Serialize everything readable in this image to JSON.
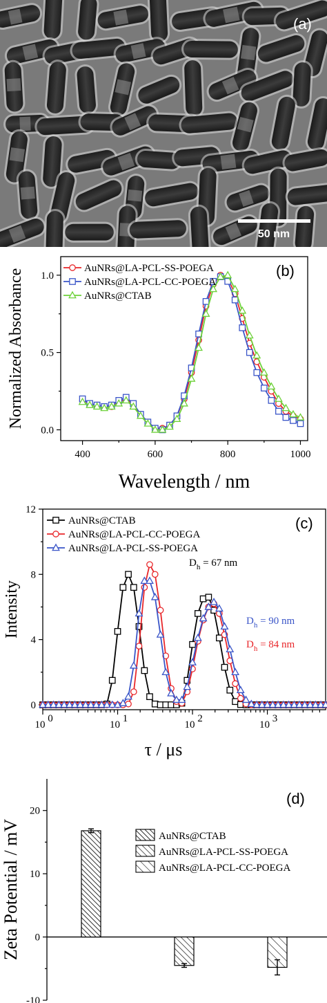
{
  "panel_a": {
    "label": "(a)",
    "scale_bar_label": "50 nm"
  },
  "chart_data": [
    {
      "panel": "(b)",
      "type": "line",
      "xlabel": "Wavelength / nm",
      "ylabel": "Normalized Absorbance",
      "xlim": [
        340,
        1020
      ],
      "ylim": [
        -0.07,
        1.12
      ],
      "xticks": [
        400,
        600,
        800,
        1000
      ],
      "yticks": [
        0.0,
        0.5,
        1.0
      ],
      "ytick_labels": [
        "0.0",
        "0.5",
        "1.0"
      ],
      "legend_position": "top-left",
      "series": [
        {
          "name": "AuNRs@LA-PCL-SS-POEGA",
          "color": "#e8262a",
          "marker": "circle",
          "x": [
            400,
            420,
            440,
            460,
            480,
            500,
            520,
            540,
            560,
            580,
            600,
            620,
            640,
            660,
            680,
            700,
            720,
            740,
            760,
            780,
            800,
            820,
            840,
            860,
            880,
            900,
            920,
            940,
            960,
            980,
            1000
          ],
          "y": [
            0.19,
            0.17,
            0.16,
            0.15,
            0.15,
            0.18,
            0.2,
            0.16,
            0.1,
            0.05,
            0.01,
            0.01,
            0.03,
            0.09,
            0.2,
            0.37,
            0.58,
            0.8,
            0.94,
            1.0,
            0.98,
            0.88,
            0.72,
            0.56,
            0.44,
            0.34,
            0.25,
            0.17,
            0.12,
            0.09,
            0.07
          ]
        },
        {
          "name": "AuNRs@LA-PCL-CC-POEGA",
          "color": "#3a55c8",
          "marker": "square",
          "x": [
            400,
            420,
            440,
            460,
            480,
            500,
            520,
            540,
            560,
            580,
            600,
            620,
            640,
            660,
            680,
            700,
            720,
            740,
            760,
            780,
            800,
            820,
            840,
            860,
            880,
            900,
            920,
            940,
            960,
            980,
            1000
          ],
          "y": [
            0.2,
            0.17,
            0.16,
            0.15,
            0.16,
            0.19,
            0.21,
            0.17,
            0.1,
            0.05,
            0.01,
            0.0,
            0.03,
            0.09,
            0.22,
            0.4,
            0.62,
            0.83,
            0.96,
            0.99,
            0.96,
            0.84,
            0.66,
            0.5,
            0.37,
            0.27,
            0.19,
            0.12,
            0.08,
            0.06,
            0.04
          ]
        },
        {
          "name": "AuNRs@CTAB",
          "color": "#6ed13a",
          "marker": "triangle",
          "x": [
            400,
            420,
            440,
            460,
            480,
            500,
            520,
            540,
            560,
            580,
            600,
            620,
            640,
            660,
            680,
            700,
            720,
            740,
            760,
            780,
            800,
            820,
            840,
            860,
            880,
            900,
            920,
            940,
            960,
            980,
            1000
          ],
          "y": [
            0.18,
            0.16,
            0.15,
            0.14,
            0.15,
            0.17,
            0.19,
            0.15,
            0.09,
            0.04,
            0.0,
            0.0,
            0.02,
            0.07,
            0.17,
            0.33,
            0.53,
            0.75,
            0.91,
            0.99,
            1.0,
            0.91,
            0.77,
            0.61,
            0.48,
            0.37,
            0.28,
            0.2,
            0.14,
            0.1,
            0.08
          ]
        }
      ]
    },
    {
      "panel": "(c)",
      "type": "line",
      "xlabel": "τ / μs",
      "ylabel": "Intensity",
      "x_scale": "log",
      "xlim": [
        1,
        6000
      ],
      "ylim": [
        -0.3,
        12
      ],
      "yticks": [
        0,
        4,
        8,
        12
      ],
      "legend_position": "top-left",
      "annotations": {
        "ctab": {
          "prefix": "D",
          "sub": "h",
          "value": "= 67 nm",
          "color": "#000000"
        },
        "ss": {
          "prefix": "D",
          "sub": "h",
          "value": "= 90 nm",
          "color": "#3a55c8"
        },
        "cc": {
          "prefix": "D",
          "sub": "h",
          "value": "= 84 nm",
          "color": "#e8262a"
        }
      },
      "series": [
        {
          "name": "AuNRs@CTAB",
          "color": "#000000",
          "marker": "square",
          "x": [
            1,
            1.18,
            1.39,
            1.64,
            1.93,
            2.28,
            2.68,
            3.16,
            3.73,
            4.39,
            5.18,
            6.11,
            7.2,
            8.48,
            10,
            11.8,
            13.9,
            16.4,
            19.3,
            22.8,
            26.8,
            31.6,
            37.3,
            43.9,
            51.8,
            61.1,
            72,
            84.8,
            100,
            118,
            139,
            164,
            193,
            228,
            268,
            316,
            373,
            439,
            518,
            611,
            720,
            848,
            1000,
            1180,
            1390,
            1640,
            1930,
            2280,
            2680,
            3160,
            3730,
            4390,
            5180,
            6000
          ],
          "y": [
            0,
            0,
            0,
            0,
            0,
            0,
            0,
            0,
            0,
            0,
            0,
            0,
            0.05,
            1.5,
            4.5,
            7.2,
            8.0,
            7.2,
            4.8,
            2.1,
            0.5,
            0.05,
            0,
            0,
            0,
            0,
            0.1,
            1.5,
            3.7,
            5.6,
            6.5,
            6.6,
            5.8,
            4.1,
            2.3,
            0.9,
            0.2,
            0.02,
            0,
            0,
            0,
            0,
            0,
            0,
            0,
            0,
            0,
            0,
            0,
            0,
            0,
            0,
            0,
            0
          ]
        },
        {
          "name": "AuNRs@LA-PCL-CC-POEGA",
          "color": "#e8262a",
          "marker": "circle",
          "x": [
            1,
            1.18,
            1.39,
            1.64,
            1.93,
            2.28,
            2.68,
            3.16,
            3.73,
            4.39,
            5.18,
            6.11,
            7.2,
            8.48,
            10,
            11.8,
            13.9,
            16.4,
            19.3,
            22.8,
            26.8,
            31.6,
            37.3,
            43.9,
            51.8,
            61.1,
            72,
            84.8,
            100,
            118,
            139,
            164,
            193,
            228,
            268,
            316,
            373,
            439,
            518,
            611,
            720,
            848,
            1000,
            1180,
            1390,
            1640,
            1930,
            2280,
            2680,
            3160,
            3730,
            4390,
            5180,
            6000
          ],
          "y": [
            0,
            0,
            0,
            0,
            0,
            0,
            0,
            0,
            0,
            0,
            0,
            0,
            0,
            0,
            0,
            0,
            0.05,
            0.8,
            3.6,
            7.2,
            8.6,
            8.0,
            5.8,
            3.0,
            1.0,
            0.2,
            0.1,
            0.8,
            2.2,
            3.9,
            5.2,
            6.0,
            6.2,
            5.6,
            4.3,
            2.7,
            1.3,
            0.4,
            0.05,
            0,
            0,
            0,
            0,
            0,
            0,
            0,
            0,
            0,
            0,
            0,
            0,
            0,
            0,
            0
          ]
        },
        {
          "name": "AuNRs@LA-PCL-SS-POEGA",
          "color": "#3a55c8",
          "marker": "triangle",
          "x": [
            1,
            1.18,
            1.39,
            1.64,
            1.93,
            2.28,
            2.68,
            3.16,
            3.73,
            4.39,
            5.18,
            6.11,
            7.2,
            8.48,
            10,
            11.8,
            13.9,
            16.4,
            19.3,
            22.8,
            26.8,
            31.6,
            37.3,
            43.9,
            51.8,
            61.1,
            72,
            84.8,
            100,
            118,
            139,
            164,
            193,
            228,
            268,
            316,
            373,
            439,
            518,
            611,
            720,
            848,
            1000,
            1180,
            1390,
            1640,
            1930,
            2280,
            2680,
            3160,
            3730,
            4390,
            5180,
            6000
          ],
          "y": [
            0,
            0,
            0,
            0,
            0,
            0,
            0,
            0,
            0,
            0,
            0,
            0,
            0,
            0,
            0,
            0.1,
            0.5,
            2.4,
            5.6,
            7.6,
            7.6,
            6.6,
            4.3,
            2.0,
            0.7,
            0.3,
            0.3,
            1.1,
            2.6,
            4.1,
            5.3,
            6.0,
            6.3,
            5.9,
            4.8,
            3.4,
            2.0,
            0.9,
            0.3,
            0.05,
            0,
            0,
            0,
            0,
            0,
            0,
            0,
            0,
            0,
            0,
            0,
            0,
            0,
            0
          ]
        }
      ]
    },
    {
      "panel": "(d)",
      "type": "bar",
      "ylabel": "Zeta Potential / mV",
      "ylim": [
        -10,
        25
      ],
      "yticks": [
        -10,
        0,
        10,
        20
      ],
      "legend_position": "right",
      "categories": [
        "AuNRs@CTAB",
        "AuNRs@LA-PCL-SS-POEGA",
        "AuNRs@LA-PCL-CC-POEGA"
      ],
      "values": [
        16.8,
        -4.5,
        -4.8
      ],
      "errors": [
        0.3,
        0.3,
        1.2
      ]
    }
  ]
}
